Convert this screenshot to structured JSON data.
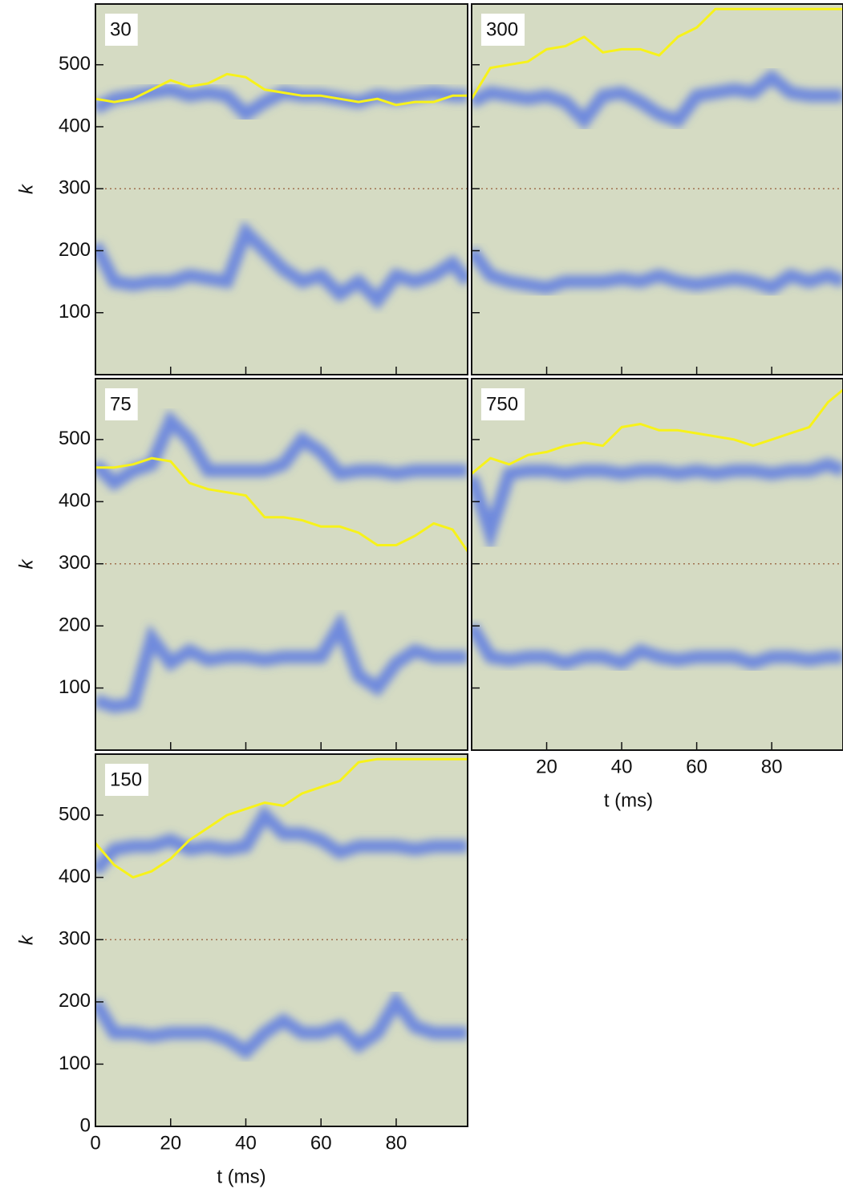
{
  "chart_data": [
    {
      "type": "line",
      "label": "30",
      "ylabel": "k",
      "x": [
        0,
        5,
        10,
        15,
        20,
        25,
        30,
        35,
        40,
        45,
        50,
        55,
        60,
        65,
        70,
        75,
        80,
        85,
        90,
        95,
        99
      ],
      "xlim": [
        0,
        99
      ],
      "ylim": [
        0,
        598
      ],
      "xticks": [
        20,
        40,
        60,
        80
      ],
      "yticks": [
        100,
        200,
        300,
        400,
        500
      ],
      "x_tick_labels": false,
      "y_tick_labels": true,
      "hline": 300,
      "hline_color": "#a0714f",
      "background": "#d5dbc3",
      "bands": [
        {
          "color": "#4d6fe6",
          "values": [
            430,
            445,
            450,
            455,
            460,
            450,
            455,
            450,
            420,
            440,
            455,
            450,
            450,
            445,
            440,
            450,
            445,
            450,
            455,
            450,
            450
          ]
        },
        {
          "color": "#4d6fe6",
          "values": [
            210,
            150,
            145,
            150,
            150,
            160,
            155,
            150,
            230,
            200,
            170,
            150,
            160,
            130,
            150,
            120,
            160,
            150,
            160,
            180,
            150
          ]
        }
      ],
      "series": [
        {
          "color": "#f7f21a",
          "values": [
            445,
            440,
            445,
            460,
            475,
            465,
            470,
            485,
            480,
            460,
            455,
            450,
            450,
            445,
            440,
            445,
            435,
            440,
            440,
            450,
            450
          ]
        }
      ]
    },
    {
      "type": "line",
      "label": "300",
      "x": [
        0,
        5,
        10,
        15,
        20,
        25,
        30,
        35,
        40,
        45,
        50,
        55,
        60,
        65,
        70,
        75,
        80,
        85,
        90,
        95,
        99
      ],
      "xlim": [
        0,
        99
      ],
      "ylim": [
        0,
        598
      ],
      "xticks": [
        20,
        40,
        60,
        80
      ],
      "yticks": [
        100,
        200,
        300,
        400,
        500
      ],
      "x_tick_labels": false,
      "y_tick_labels": false,
      "hline": 300,
      "hline_color": "#a0714f",
      "background": "#d5dbc3",
      "bands": [
        {
          "color": "#4d6fe6",
          "values": [
            440,
            455,
            450,
            445,
            450,
            440,
            410,
            450,
            455,
            440,
            420,
            410,
            450,
            455,
            460,
            455,
            480,
            455,
            450,
            450,
            450
          ]
        },
        {
          "color": "#4d6fe6",
          "values": [
            200,
            160,
            150,
            145,
            140,
            150,
            150,
            150,
            155,
            150,
            160,
            150,
            145,
            150,
            155,
            150,
            140,
            160,
            150,
            160,
            150
          ]
        }
      ],
      "series": [
        {
          "color": "#f7f21a",
          "values": [
            445,
            495,
            500,
            505,
            525,
            530,
            545,
            520,
            525,
            525,
            515,
            545,
            560,
            590,
            590,
            590,
            590,
            590,
            590,
            590,
            590
          ]
        }
      ]
    },
    {
      "type": "line",
      "label": "75",
      "ylabel": "k",
      "x": [
        0,
        5,
        10,
        15,
        20,
        25,
        30,
        35,
        40,
        45,
        50,
        55,
        60,
        65,
        70,
        75,
        80,
        85,
        90,
        95,
        99
      ],
      "xlim": [
        0,
        99
      ],
      "ylim": [
        0,
        598
      ],
      "xticks": [
        20,
        40,
        60,
        80
      ],
      "yticks": [
        100,
        200,
        300,
        400,
        500
      ],
      "x_tick_labels": false,
      "y_tick_labels": true,
      "hline": 300,
      "hline_color": "#a0714f",
      "background": "#d5dbc3",
      "bands": [
        {
          "color": "#4d6fe6",
          "values": [
            460,
            430,
            450,
            460,
            530,
            500,
            450,
            450,
            450,
            450,
            460,
            500,
            480,
            445,
            450,
            450,
            445,
            450,
            450,
            450,
            450
          ]
        },
        {
          "color": "#4d6fe6",
          "values": [
            80,
            70,
            75,
            180,
            140,
            160,
            145,
            150,
            150,
            145,
            150,
            150,
            150,
            200,
            120,
            100,
            140,
            160,
            150,
            150,
            150
          ]
        }
      ],
      "series": [
        {
          "color": "#f7f21a",
          "values": [
            455,
            455,
            460,
            470,
            465,
            430,
            420,
            415,
            410,
            375,
            375,
            370,
            360,
            360,
            350,
            330,
            330,
            345,
            365,
            355,
            320
          ]
        }
      ]
    },
    {
      "type": "line",
      "label": "750",
      "xlabel": "t (ms)",
      "x": [
        0,
        5,
        10,
        15,
        20,
        25,
        30,
        35,
        40,
        45,
        50,
        55,
        60,
        65,
        70,
        75,
        80,
        85,
        90,
        95,
        99
      ],
      "xlim": [
        0,
        99
      ],
      "ylim": [
        0,
        598
      ],
      "xticks": [
        20,
        40,
        60,
        80
      ],
      "yticks": [
        100,
        200,
        300,
        400,
        500
      ],
      "x_tick_labels": true,
      "y_tick_labels": false,
      "hline": 300,
      "hline_color": "#a0714f",
      "background": "#d5dbc3",
      "bands": [
        {
          "color": "#4d6fe6",
          "values": [
            440,
            350,
            445,
            450,
            450,
            445,
            450,
            450,
            445,
            450,
            450,
            445,
            450,
            445,
            450,
            450,
            445,
            450,
            450,
            460,
            450
          ]
        },
        {
          "color": "#4d6fe6",
          "values": [
            200,
            150,
            145,
            150,
            150,
            140,
            150,
            150,
            140,
            160,
            150,
            145,
            150,
            150,
            150,
            140,
            150,
            150,
            145,
            150,
            150
          ]
        }
      ],
      "series": [
        {
          "color": "#f7f21a",
          "values": [
            445,
            470,
            460,
            475,
            480,
            490,
            495,
            490,
            520,
            525,
            515,
            515,
            510,
            505,
            500,
            490,
            500,
            510,
            520,
            560,
            580
          ]
        }
      ]
    },
    {
      "type": "line",
      "label": "150",
      "ylabel": "k",
      "xlabel": "t (ms)",
      "x": [
        0,
        5,
        10,
        15,
        20,
        25,
        30,
        35,
        40,
        45,
        50,
        55,
        60,
        65,
        70,
        75,
        80,
        85,
        90,
        95,
        99
      ],
      "xlim": [
        0,
        99
      ],
      "ylim": [
        0,
        598
      ],
      "xticks": [
        0,
        20,
        40,
        60,
        80
      ],
      "yticks": [
        0,
        100,
        200,
        300,
        400,
        500
      ],
      "x_tick_labels": true,
      "y_tick_labels": true,
      "hline": 300,
      "hline_color": "#a0714f",
      "background": "#d5dbc3",
      "bands": [
        {
          "color": "#4d6fe6",
          "values": [
            410,
            445,
            450,
            450,
            460,
            445,
            450,
            445,
            450,
            500,
            470,
            470,
            460,
            440,
            450,
            450,
            450,
            445,
            450,
            450,
            450
          ]
        },
        {
          "color": "#4d6fe6",
          "values": [
            200,
            150,
            150,
            145,
            150,
            150,
            150,
            140,
            120,
            150,
            170,
            150,
            150,
            160,
            130,
            150,
            200,
            160,
            150,
            150,
            150
          ]
        }
      ],
      "series": [
        {
          "color": "#f7f21a",
          "values": [
            455,
            420,
            400,
            410,
            430,
            460,
            480,
            500,
            510,
            520,
            515,
            535,
            545,
            555,
            585,
            590,
            590,
            590,
            590,
            590,
            590
          ]
        }
      ]
    }
  ]
}
